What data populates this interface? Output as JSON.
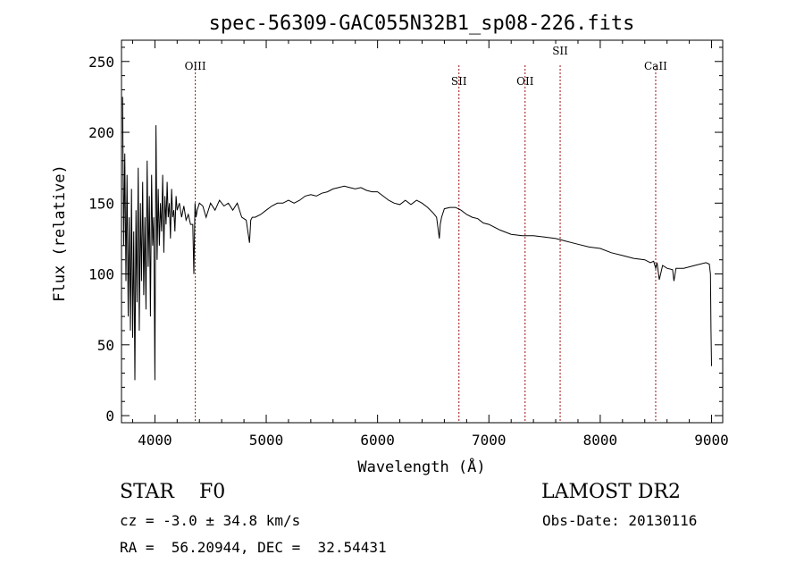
{
  "chart_data": {
    "type": "line",
    "title": "spec-56309-GAC055N32B1_sp08-226.fits",
    "xlabel": "Wavelength (Å)",
    "ylabel": "Flux (relative)",
    "xlim": [
      3700,
      9100
    ],
    "ylim": [
      -5,
      265
    ],
    "xticks": [
      "4000",
      "5000",
      "6000",
      "7000",
      "8000",
      "9000"
    ],
    "yticks": [
      "0",
      "50",
      "100",
      "150",
      "200",
      "250"
    ],
    "series": [
      {
        "color": "#000000",
        "x": [
          3710,
          3720,
          3730,
          3740,
          3750,
          3760,
          3770,
          3780,
          3790,
          3800,
          3810,
          3820,
          3830,
          3840,
          3850,
          3860,
          3870,
          3880,
          3890,
          3900,
          3910,
          3920,
          3930,
          3940,
          3950,
          3960,
          3970,
          3980,
          3990,
          4000,
          4010,
          4020,
          4030,
          4040,
          4050,
          4060,
          4070,
          4080,
          4090,
          4100,
          4110,
          4120,
          4130,
          4140,
          4150,
          4160,
          4170,
          4180,
          4190,
          4200,
          4220,
          4240,
          4260,
          4280,
          4300,
          4320,
          4340,
          4350,
          4360,
          4370,
          4380,
          4400,
          4430,
          4460,
          4500,
          4540,
          4580,
          4620,
          4660,
          4700,
          4740,
          4780,
          4820,
          4850,
          4861,
          4875,
          4900,
          4950,
          5000,
          5050,
          5100,
          5150,
          5200,
          5250,
          5300,
          5350,
          5400,
          5450,
          5500,
          5550,
          5600,
          5650,
          5700,
          5750,
          5800,
          5850,
          5900,
          5950,
          6000,
          6050,
          6100,
          6150,
          6200,
          6250,
          6300,
          6350,
          6400,
          6450,
          6500,
          6530,
          6555,
          6563,
          6575,
          6600,
          6650,
          6700,
          6750,
          6800,
          6850,
          6900,
          6950,
          7000,
          7100,
          7200,
          7300,
          7400,
          7500,
          7600,
          7700,
          7800,
          7900,
          8000,
          8100,
          8200,
          8300,
          8400,
          8450,
          8480,
          8498,
          8510,
          8530,
          8542,
          8560,
          8600,
          8650,
          8662,
          8680,
          8750,
          8850,
          8950,
          8980,
          8990,
          8995,
          9000
        ],
        "y": [
          225,
          120,
          185,
          95,
          170,
          70,
          140,
          60,
          160,
          55,
          130,
          25,
          145,
          80,
          175,
          60,
          150,
          95,
          165,
          85,
          140,
          75,
          180,
          105,
          155,
          70,
          170,
          120,
          140,
          25,
          205,
          110,
          160,
          120,
          150,
          130,
          170,
          115,
          155,
          135,
          165,
          140,
          150,
          125,
          160,
          140,
          145,
          130,
          155,
          145,
          150,
          140,
          148,
          138,
          142,
          135,
          135,
          100,
          150,
          140,
          145,
          150,
          148,
          140,
          150,
          145,
          152,
          148,
          150,
          145,
          150,
          140,
          138,
          122,
          138,
          140,
          140,
          142,
          145,
          148,
          150,
          150,
          152,
          150,
          152,
          155,
          156,
          155,
          157,
          158,
          160,
          161,
          162,
          161,
          160,
          161,
          159,
          158,
          158,
          155,
          152,
          150,
          149,
          152,
          149,
          152,
          150,
          147,
          143,
          140,
          125,
          135,
          140,
          146,
          147,
          147,
          145,
          142,
          140,
          139,
          136,
          135,
          131,
          128,
          127,
          127,
          126,
          125,
          123,
          121,
          119,
          118,
          115,
          113,
          111,
          110,
          108,
          109,
          104,
          108,
          96,
          100,
          106,
          104,
          103,
          95,
          104,
          104,
          106,
          108,
          107,
          100,
          60,
          35
        ]
      }
    ],
    "lines": [
      {
        "label": "OIII",
        "wavelength": 4363
      },
      {
        "label": "SII",
        "wavelength": 6731
      },
      {
        "label": "OII",
        "wavelength": 7325
      },
      {
        "label": "SII",
        "wavelength": 7640
      },
      {
        "label": "CaII",
        "wavelength": 8498
      }
    ]
  },
  "info": {
    "object_class": "STAR    F0",
    "survey": "LAMOST DR2",
    "redshift": "cz = -3.0 ± 34.8 km/s",
    "obs_date": "Obs-Date: 20130116",
    "coords": "RA =  56.20944, DEC =  32.54431"
  }
}
